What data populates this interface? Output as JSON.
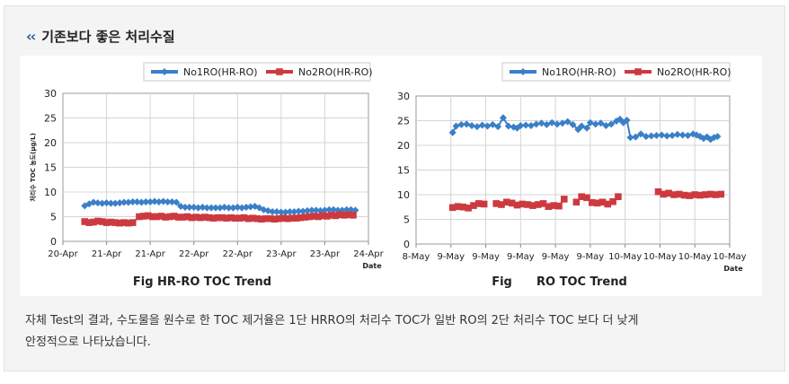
{
  "section": {
    "icon": "double-chevron-left-icon",
    "title": "기존보다 좋은 처리수질"
  },
  "description": {
    "line1": "자체 Test의 결과, 수도물을 원수로 한 TOC 제거율은 1단 HRRO의 처리수 TOC가 일반 RO의 2단 처리수 TOC 보다 더 낮게",
    "line2": "안정적으로 나타났습니다."
  },
  "colors": {
    "series1": "#3a7fc8",
    "series2": "#cc3a40",
    "grid": "#d4d4d4"
  },
  "chart_data": [
    {
      "type": "line",
      "title": "Fig HR-RO TOC Trend",
      "xlabel": "Date",
      "ylabel": "처리수 TOC 농도(μg/L)",
      "ylim": [
        0,
        30
      ],
      "yticks": [
        0,
        5,
        10,
        15,
        20,
        25,
        30
      ],
      "xticks": [
        "20-Apr",
        "21-Apr",
        "21-Apr",
        "22-Apr",
        "22-Apr",
        "23-Apr",
        "23-Apr",
        "24-Apr"
      ],
      "grid": true,
      "legend": "top-right",
      "series": [
        {
          "name": "No1RO(HR-RO)",
          "x": [
            0.5,
            0.6,
            0.7,
            0.8,
            0.9,
            1.0,
            1.1,
            1.2,
            1.3,
            1.4,
            1.5,
            1.6,
            1.7,
            1.8,
            1.9,
            2.0,
            2.1,
            2.2,
            2.3,
            2.4,
            2.5,
            2.6,
            2.7,
            2.8,
            2.9,
            3.0,
            3.1,
            3.2,
            3.3,
            3.4,
            3.5,
            3.6,
            3.7,
            3.8,
            3.9,
            4.0,
            4.1,
            4.2,
            4.3,
            4.4,
            4.5,
            4.6,
            4.7,
            4.8,
            4.9,
            5.0,
            5.1,
            5.2,
            5.3,
            5.4,
            5.5,
            5.6,
            5.7,
            5.8,
            5.9,
            6.0,
            6.1,
            6.2,
            6.3,
            6.4,
            6.5,
            6.6,
            6.7
          ],
          "values": [
            7.2,
            7.6,
            7.9,
            7.8,
            7.7,
            7.8,
            7.7,
            7.7,
            7.8,
            7.9,
            7.9,
            8.0,
            8.0,
            7.9,
            8.0,
            8.0,
            8.1,
            8.0,
            8.1,
            8.0,
            8.0,
            7.9,
            7.1,
            6.9,
            6.9,
            6.9,
            6.8,
            6.9,
            6.8,
            6.8,
            6.8,
            6.8,
            6.9,
            6.8,
            6.8,
            6.9,
            6.8,
            6.9,
            7.0,
            7.1,
            6.8,
            6.4,
            6.2,
            6.0,
            6.0,
            5.9,
            5.9,
            6.0,
            6.0,
            6.1,
            6.1,
            6.2,
            6.3,
            6.3,
            6.2,
            6.3,
            6.4,
            6.4,
            6.3,
            6.3,
            6.4,
            6.4,
            6.3
          ]
        },
        {
          "name": "No2RO(HR-RO)",
          "x": [
            0.5,
            0.6,
            0.7,
            0.8,
            0.9,
            1.0,
            1.1,
            1.2,
            1.3,
            1.4,
            1.5,
            1.6,
            1.75,
            1.85,
            1.95,
            2.05,
            2.15,
            2.25,
            2.35,
            2.45,
            2.55,
            2.65,
            2.75,
            2.85,
            2.95,
            3.05,
            3.15,
            3.25,
            3.35,
            3.45,
            3.55,
            3.65,
            3.75,
            3.85,
            3.95,
            4.05,
            4.15,
            4.25,
            4.35,
            4.45,
            4.55,
            4.65,
            4.75,
            4.85,
            4.95,
            5.05,
            5.15,
            5.25,
            5.35,
            5.45,
            5.55,
            5.65,
            5.75,
            5.85,
            5.95,
            6.05,
            6.15,
            6.25,
            6.35,
            6.45,
            6.55,
            6.65
          ],
          "values": [
            4.0,
            3.8,
            3.9,
            4.1,
            4.0,
            3.8,
            3.9,
            3.8,
            3.7,
            3.8,
            3.7,
            3.8,
            5.0,
            5.1,
            5.2,
            5.0,
            5.0,
            5.1,
            4.9,
            5.0,
            5.1,
            4.9,
            4.9,
            5.0,
            4.8,
            4.9,
            4.8,
            4.9,
            4.8,
            4.7,
            4.8,
            4.8,
            4.7,
            4.8,
            4.7,
            4.7,
            4.8,
            4.6,
            4.7,
            4.6,
            4.5,
            4.6,
            4.6,
            4.5,
            4.6,
            4.7,
            4.6,
            4.7,
            4.7,
            4.8,
            4.9,
            5.0,
            5.1,
            5.0,
            5.2,
            5.1,
            5.3,
            5.2,
            5.4,
            5.3,
            5.4,
            5.3
          ]
        }
      ]
    },
    {
      "type": "line",
      "title": "Fig      RO TOC Trend",
      "xlabel": "Date",
      "ylabel": "",
      "ylim": [
        0,
        30
      ],
      "yticks": [
        0,
        5,
        10,
        15,
        20,
        25,
        30
      ],
      "xticks": [
        "8-May",
        "9-May",
        "9-May",
        "9-May",
        "9-May",
        "9-May",
        "10-May",
        "10-May",
        "10-May",
        "10-May"
      ],
      "grid": true,
      "legend": "top-right",
      "series": [
        {
          "name": "No1RO(HR-RO)",
          "x": [
            1.05,
            1.15,
            1.3,
            1.45,
            1.6,
            1.75,
            1.9,
            2.05,
            2.2,
            2.35,
            2.5,
            2.65,
            2.8,
            2.9,
            3.0,
            3.15,
            3.3,
            3.45,
            3.6,
            3.75,
            3.9,
            4.05,
            4.2,
            4.35,
            4.5,
            4.65,
            4.75,
            4.9,
            5.0,
            5.15,
            5.3,
            5.45,
            5.6,
            5.75,
            5.85,
            5.95,
            6.05,
            6.15,
            6.3,
            6.45,
            6.6,
            6.75,
            6.9,
            7.05,
            7.2,
            7.35,
            7.5,
            7.65,
            7.8,
            7.95,
            8.05,
            8.15,
            8.25,
            8.35,
            8.45,
            8.55,
            8.65
          ],
          "values": [
            22.6,
            23.9,
            24.2,
            24.3,
            24.0,
            23.8,
            24.1,
            23.9,
            24.2,
            23.8,
            25.6,
            23.9,
            23.7,
            23.5,
            24.0,
            24.1,
            24.0,
            24.3,
            24.5,
            24.2,
            24.6,
            24.3,
            24.5,
            24.8,
            24.2,
            23.2,
            23.9,
            23.5,
            24.6,
            24.3,
            24.5,
            24.0,
            24.3,
            24.9,
            25.3,
            24.6,
            25.1,
            21.6,
            21.7,
            22.3,
            21.8,
            21.9,
            22.0,
            22.1,
            21.9,
            22.0,
            22.2,
            22.1,
            22.0,
            22.3,
            22.1,
            21.8,
            21.4,
            21.7,
            21.2,
            21.6,
            21.8
          ]
        },
        {
          "name": "No2RO(HR-RO)",
          "x": [
            1.05,
            1.2,
            1.35,
            1.5,
            1.65,
            1.8,
            1.95,
            2.3,
            2.45,
            2.6,
            2.75,
            2.9,
            3.05,
            3.2,
            3.35,
            3.5,
            3.65,
            3.8,
            3.95,
            4.1,
            4.25,
            4.6,
            4.75,
            4.9,
            5.05,
            5.2,
            5.35,
            5.5,
            5.65,
            5.8,
            6.95,
            7.1,
            7.25,
            7.4,
            7.55,
            7.7,
            7.85,
            8.0,
            8.15,
            8.3,
            8.45,
            8.6,
            8.75
          ],
          "values": [
            7.4,
            7.6,
            7.5,
            7.3,
            7.8,
            8.2,
            8.1,
            8.2,
            8.0,
            8.5,
            8.3,
            7.9,
            8.1,
            8.0,
            7.8,
            8.0,
            8.2,
            7.6,
            7.8,
            7.7,
            9.1,
            8.5,
            9.6,
            9.4,
            8.4,
            8.3,
            8.5,
            8.1,
            8.6,
            9.6,
            10.6,
            10.1,
            10.3,
            10.0,
            10.1,
            9.9,
            9.8,
            10.0,
            9.9,
            10.0,
            10.1,
            10.0,
            10.1
          ]
        }
      ]
    }
  ]
}
